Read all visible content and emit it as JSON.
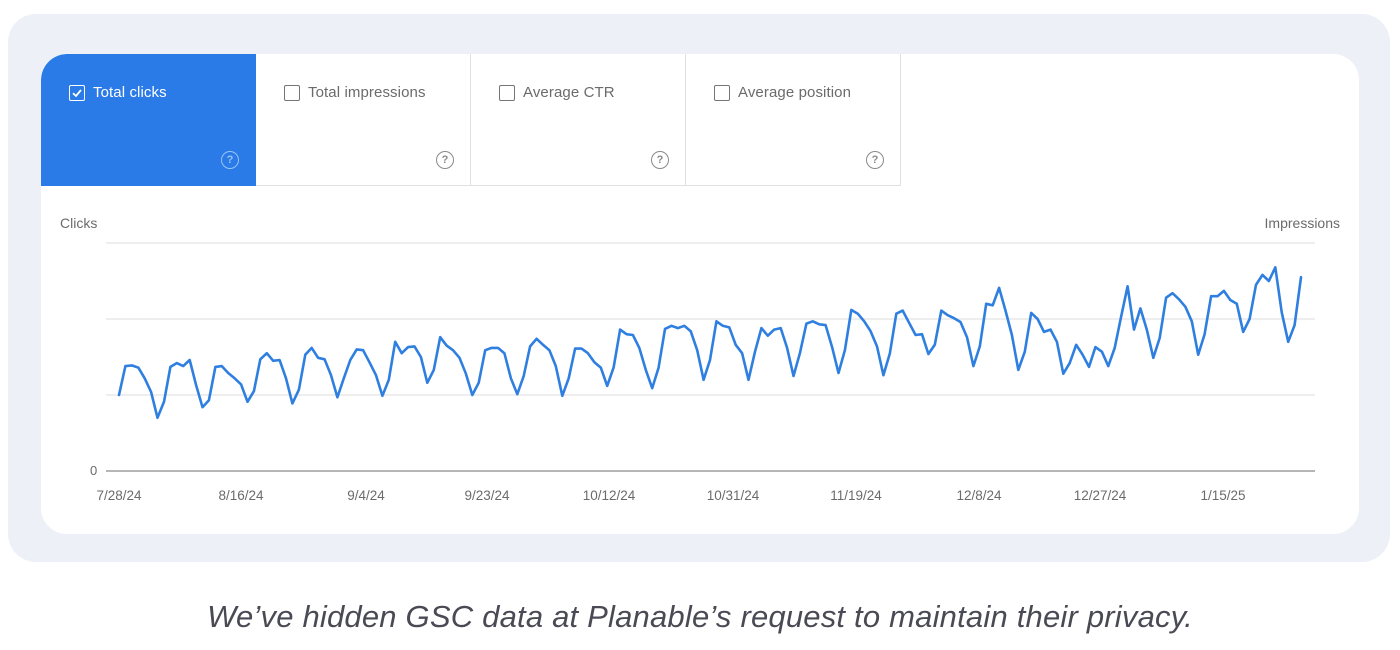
{
  "metric_tabs": [
    {
      "label": "Total clicks",
      "checked": true,
      "help": "?"
    },
    {
      "label": "Total impressions",
      "checked": false,
      "help": "?"
    },
    {
      "label": "Average CTR",
      "checked": false,
      "help": "?"
    },
    {
      "label": "Average position",
      "checked": false,
      "help": "?"
    }
  ],
  "colors": {
    "accent": "#2a7ae8",
    "line": "#2f7fe0",
    "frame_bg": "#edf1f7",
    "gridline": "#e3e3e3",
    "axis": "#8a8a8a",
    "text_muted": "#6b6b6b"
  },
  "axes": {
    "left_title": "Clicks",
    "right_title": "Impressions",
    "zero_label": "0"
  },
  "x_ticks": [
    "7/28/24",
    "8/16/24",
    "9/4/24",
    "9/23/24",
    "10/12/24",
    "10/31/24",
    "11/19/24",
    "12/8/24",
    "12/27/24",
    "1/15/25"
  ],
  "caption": "We’ve hidden GSC data at Planable’s request to maintain their privacy.",
  "chart_data": {
    "type": "line",
    "title": "",
    "xlabel": "",
    "ylabel": "Clicks",
    "y2label": "Impressions",
    "y_axis_values_hidden": true,
    "y_units_note": "relative scale: 1 unit = 1 gridline interval; absolute values hidden",
    "ylim": [
      0,
      3
    ],
    "grid": true,
    "legend": [],
    "x_tick_labels": [
      "7/28/24",
      "8/16/24",
      "9/4/24",
      "9/23/24",
      "10/12/24",
      "10/31/24",
      "11/19/24",
      "12/8/24",
      "12/27/24",
      "1/15/25"
    ],
    "x_range": [
      "7/28/24",
      "1/26/25"
    ],
    "series": [
      {
        "name": "Total clicks",
        "color": "#2f7fe0",
        "values": [
          1.0,
          1.38,
          1.39,
          1.36,
          1.22,
          1.04,
          0.7,
          0.91,
          1.37,
          1.42,
          1.38,
          1.46,
          1.13,
          0.84,
          0.93,
          1.37,
          1.38,
          1.29,
          1.22,
          1.14,
          0.91,
          1.05,
          1.47,
          1.55,
          1.45,
          1.46,
          1.22,
          0.89,
          1.07,
          1.53,
          1.62,
          1.49,
          1.47,
          1.26,
          0.97,
          1.22,
          1.46,
          1.6,
          1.59,
          1.43,
          1.26,
          0.99,
          1.2,
          1.7,
          1.55,
          1.63,
          1.64,
          1.5,
          1.16,
          1.33,
          1.76,
          1.65,
          1.59,
          1.49,
          1.28,
          1.0,
          1.16,
          1.59,
          1.62,
          1.62,
          1.55,
          1.22,
          1.01,
          1.25,
          1.64,
          1.74,
          1.66,
          1.59,
          1.38,
          0.99,
          1.22,
          1.61,
          1.61,
          1.55,
          1.43,
          1.36,
          1.12,
          1.36,
          1.86,
          1.8,
          1.79,
          1.62,
          1.33,
          1.09,
          1.36,
          1.87,
          1.91,
          1.88,
          1.91,
          1.84,
          1.59,
          1.2,
          1.46,
          1.97,
          1.91,
          1.89,
          1.66,
          1.55,
          1.2,
          1.57,
          1.88,
          1.78,
          1.86,
          1.88,
          1.62,
          1.25,
          1.55,
          1.94,
          1.97,
          1.93,
          1.92,
          1.63,
          1.29,
          1.59,
          2.12,
          2.07,
          1.97,
          1.84,
          1.64,
          1.26,
          1.55,
          2.07,
          2.11,
          1.95,
          1.79,
          1.8,
          1.54,
          1.66,
          2.11,
          2.05,
          2.01,
          1.96,
          1.76,
          1.38,
          1.64,
          2.2,
          2.18,
          2.41,
          2.11,
          1.79,
          1.33,
          1.57,
          2.08,
          2.0,
          1.83,
          1.86,
          1.7,
          1.28,
          1.42,
          1.66,
          1.53,
          1.37,
          1.63,
          1.57,
          1.38,
          1.62,
          2.03,
          2.43,
          1.86,
          2.14,
          1.86,
          1.49,
          1.75,
          2.28,
          2.34,
          2.26,
          2.16,
          1.97,
          1.53,
          1.8,
          2.3,
          2.3,
          2.37,
          2.25,
          2.2,
          1.83,
          2.0,
          2.45,
          2.58,
          2.5,
          2.68,
          2.09,
          1.7,
          1.92,
          2.55
        ]
      }
    ]
  }
}
